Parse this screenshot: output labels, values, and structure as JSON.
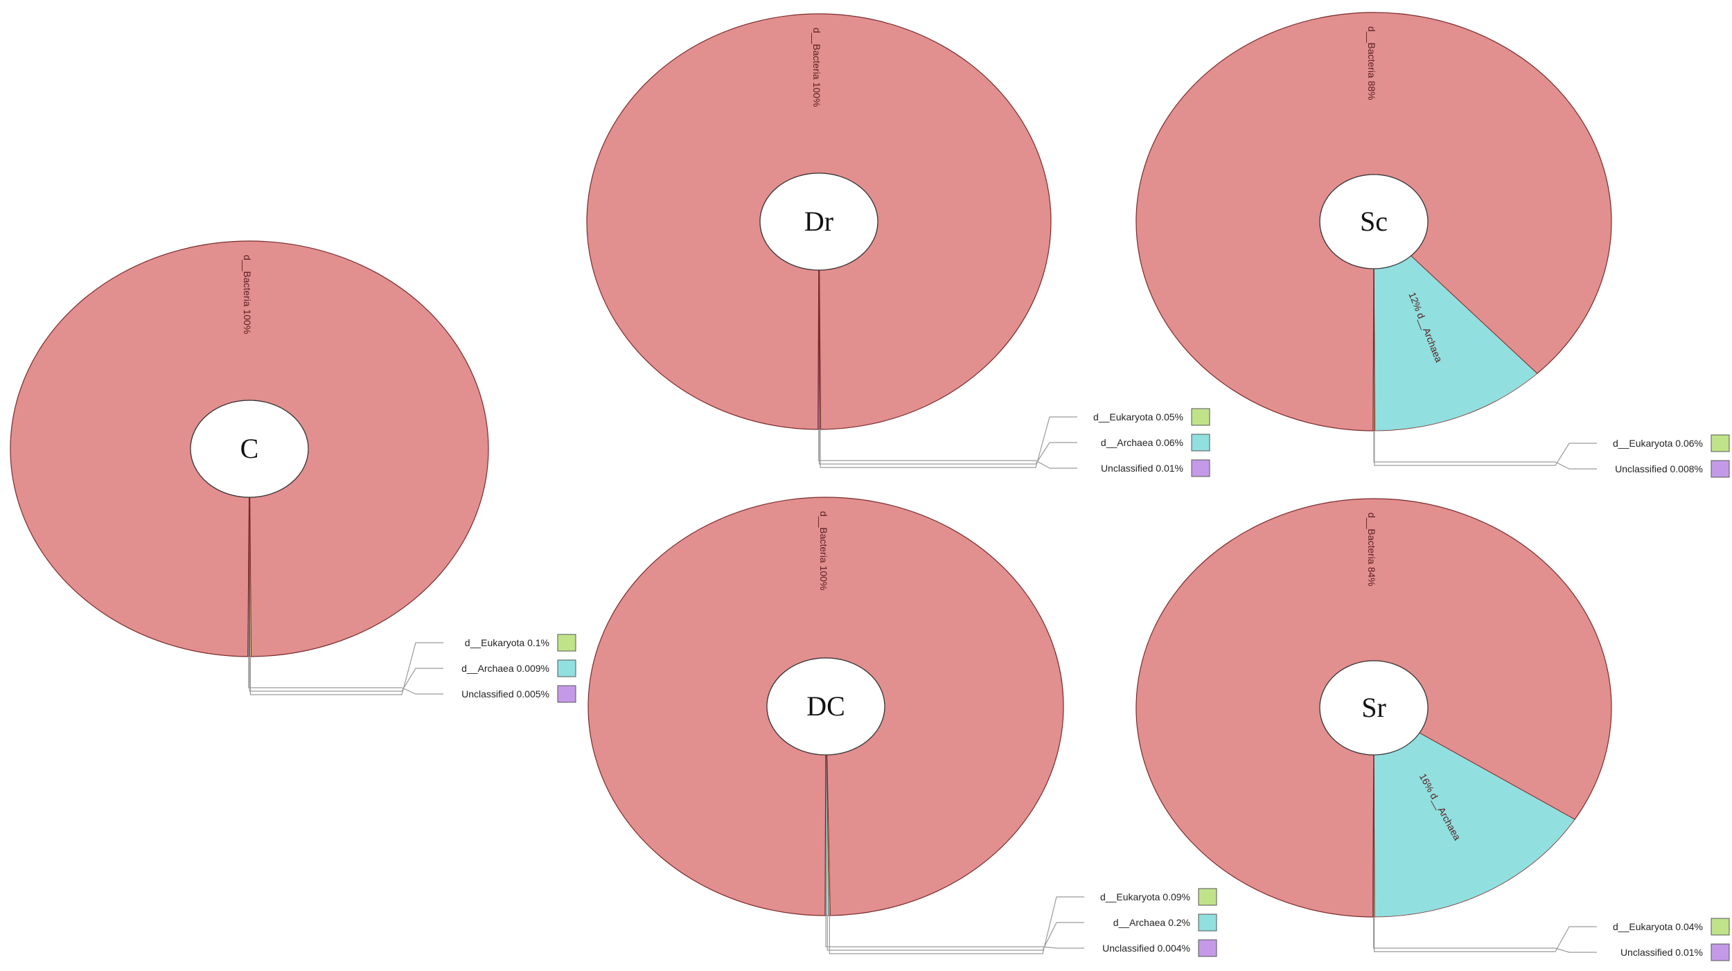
{
  "colors": {
    "bacteria": "#e28f8f",
    "archaea": "#91dfdf",
    "eukaryota": "#c0e38a",
    "unclassified": "#c49ae8",
    "outline": "#7a2a2a",
    "leader": "#9a9a9a"
  },
  "chart_data": [
    {
      "type": "pie",
      "center_label": "C",
      "slices": [
        {
          "label": "d__Bacteria",
          "percent_text": "100%",
          "value": 99.886
        },
        {
          "label": "d__Eukaryota",
          "percent_text": "0.1%",
          "value": 0.1
        },
        {
          "label": "d__Archaea",
          "percent_text": "0.009%",
          "value": 0.009
        },
        {
          "label": "Unclassified",
          "percent_text": "0.005%",
          "value": 0.005
        }
      ]
    },
    {
      "type": "pie",
      "center_label": "Dr",
      "slices": [
        {
          "label": "d__Bacteria",
          "percent_text": "100%",
          "value": 99.88
        },
        {
          "label": "d__Eukaryota",
          "percent_text": "0.05%",
          "value": 0.05
        },
        {
          "label": "d__Archaea",
          "percent_text": "0.06%",
          "value": 0.06
        },
        {
          "label": "Unclassified",
          "percent_text": "0.01%",
          "value": 0.01
        }
      ]
    },
    {
      "type": "pie",
      "center_label": "DC",
      "slices": [
        {
          "label": "d__Bacteria",
          "percent_text": "100%",
          "value": 99.706
        },
        {
          "label": "d__Eukaryota",
          "percent_text": "0.09%",
          "value": 0.09
        },
        {
          "label": "d__Archaea",
          "percent_text": "0.2%",
          "value": 0.2
        },
        {
          "label": "Unclassified",
          "percent_text": "0.004%",
          "value": 0.004
        }
      ]
    },
    {
      "type": "pie",
      "center_label": "Sc",
      "slices": [
        {
          "label": "d__Bacteria",
          "percent_text": "88%",
          "value": 88
        },
        {
          "label": "d__Archaea",
          "percent_text": "12%",
          "value": 12
        },
        {
          "label": "d__Eukaryota",
          "percent_text": "0.06%",
          "value": 0.06
        },
        {
          "label": "Unclassified",
          "percent_text": "0.008%",
          "value": 0.008
        }
      ]
    },
    {
      "type": "pie",
      "center_label": "Sr",
      "slices": [
        {
          "label": "d__Bacteria",
          "percent_text": "84%",
          "value": 84
        },
        {
          "label": "d__Archaea",
          "percent_text": "16%",
          "value": 16
        },
        {
          "label": "d__Eukaryota",
          "percent_text": "0.04%",
          "value": 0.04
        },
        {
          "label": "Unclassified",
          "percent_text": "0.01%",
          "value": 0.01
        }
      ]
    }
  ]
}
